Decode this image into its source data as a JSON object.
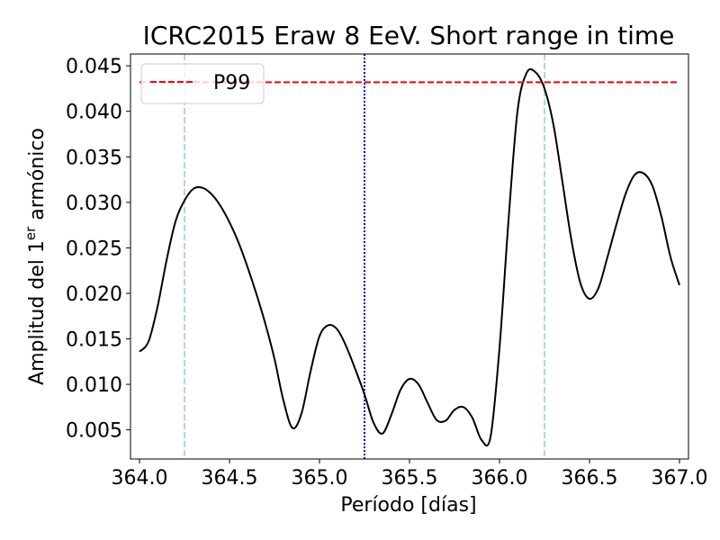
{
  "chart_data": {
    "type": "line",
    "title": "ICRC2015 Eraw 8 EeV. Short range in time",
    "xlabel": "Período [días]",
    "ylabel_prefix": "Amplitud del 1",
    "ylabel_sup": "er",
    "ylabel_suffix": " armónico",
    "xlim": [
      363.95,
      367.05
    ],
    "ylim": [
      0.0018,
      0.0463
    ],
    "x_ticks": [
      364.0,
      364.5,
      365.0,
      365.5,
      366.0,
      366.5,
      367.0
    ],
    "x_tick_labels": [
      "364.0",
      "364.5",
      "365.0",
      "365.5",
      "366.0",
      "366.5",
      "367.0"
    ],
    "y_ticks": [
      0.005,
      0.01,
      0.015,
      0.02,
      0.025,
      0.03,
      0.035,
      0.04,
      0.045
    ],
    "y_tick_labels": [
      "0.005",
      "0.010",
      "0.015",
      "0.020",
      "0.025",
      "0.030",
      "0.035",
      "0.040",
      "0.045"
    ],
    "grid": false,
    "legend": {
      "location": "upper left",
      "entries": [
        "P99"
      ]
    },
    "series": [
      {
        "name": "",
        "color": "#000000",
        "style": "solid",
        "x": [
          364.0,
          364.05,
          364.1,
          364.15,
          364.2,
          364.25,
          364.3,
          364.35,
          364.4,
          364.45,
          364.5,
          364.55,
          364.6,
          364.65,
          364.7,
          364.75,
          364.8,
          364.85,
          364.9,
          364.95,
          365.0,
          365.05,
          365.1,
          365.15,
          365.2,
          365.25,
          365.3,
          365.35,
          365.4,
          365.45,
          365.5,
          365.55,
          365.6,
          365.65,
          365.7,
          365.75,
          365.8,
          365.85,
          365.9,
          365.95,
          366.0,
          366.05,
          366.1,
          366.15,
          366.2,
          366.25,
          366.3,
          366.35,
          366.4,
          366.45,
          366.5,
          366.55,
          366.6,
          366.65,
          366.7,
          366.75,
          366.8,
          366.85,
          366.9,
          366.95,
          367.0
        ],
        "y": [
          0.0136,
          0.0147,
          0.0185,
          0.0236,
          0.0279,
          0.0302,
          0.0315,
          0.0316,
          0.0309,
          0.0296,
          0.0278,
          0.0256,
          0.0229,
          0.0199,
          0.0166,
          0.0128,
          0.0082,
          0.0052,
          0.0068,
          0.0114,
          0.0153,
          0.0165,
          0.016,
          0.0141,
          0.0116,
          0.0089,
          0.0058,
          0.0046,
          0.0067,
          0.0094,
          0.0106,
          0.01,
          0.008,
          0.0061,
          0.006,
          0.0072,
          0.0075,
          0.0063,
          0.0039,
          0.0042,
          0.014,
          0.028,
          0.04,
          0.0442,
          0.0443,
          0.0425,
          0.0385,
          0.0322,
          0.0258,
          0.0211,
          0.0194,
          0.0206,
          0.024,
          0.0276,
          0.0309,
          0.033,
          0.0332,
          0.0318,
          0.0284,
          0.024,
          0.0209
        ]
      },
      {
        "name": "P99",
        "color": "#ff0000",
        "style": "dashed",
        "x": [
          364.0,
          367.0
        ],
        "y": [
          0.0432,
          0.0432
        ]
      }
    ],
    "vlines": [
      {
        "x": 364.25,
        "color": "#add8e6",
        "style": "dashed"
      },
      {
        "x": 365.25,
        "color": "#0000cc",
        "style": "dotted"
      },
      {
        "x": 366.25,
        "color": "#add8e6",
        "style": "dashed"
      }
    ]
  }
}
